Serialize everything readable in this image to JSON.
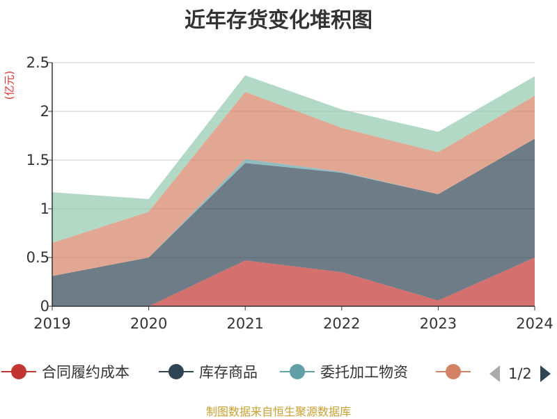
{
  "title": "近年存货变化堆积图",
  "unit_label": "(亿元)",
  "source": "制图数据来自恒生聚源数据库",
  "pager": {
    "text": "1/2"
  },
  "chart_data": {
    "type": "area",
    "stacked": true,
    "x": [
      "2019",
      "2020",
      "2021",
      "2022",
      "2023",
      "2024"
    ],
    "ylim": [
      0,
      2.5
    ],
    "yticks": [
      "0",
      "0.5",
      "1",
      "1.5",
      "2",
      "2.5"
    ],
    "grid": true,
    "legend_position": "bottom",
    "series": [
      {
        "name": "合同履约成本",
        "color": "#c23531",
        "values": [
          0,
          0,
          0.47,
          0.35,
          0.06,
          0.5
        ]
      },
      {
        "name": "库存商品",
        "color": "#2f4554",
        "values": [
          0.31,
          0.5,
          1.0,
          1.02,
          1.09,
          1.22
        ]
      },
      {
        "name": "委托加工物资",
        "color": "#61a0a8",
        "values": [
          0,
          0,
          0.04,
          0.01,
          0,
          0
        ]
      },
      {
        "name": "",
        "color": "#d48265",
        "values": [
          0.34,
          0.47,
          0.69,
          0.45,
          0.43,
          0.44
        ]
      },
      {
        "name": "",
        "color": "#91c7ae",
        "values": [
          0.52,
          0.13,
          0.17,
          0.19,
          0.21,
          0.2
        ]
      }
    ]
  }
}
